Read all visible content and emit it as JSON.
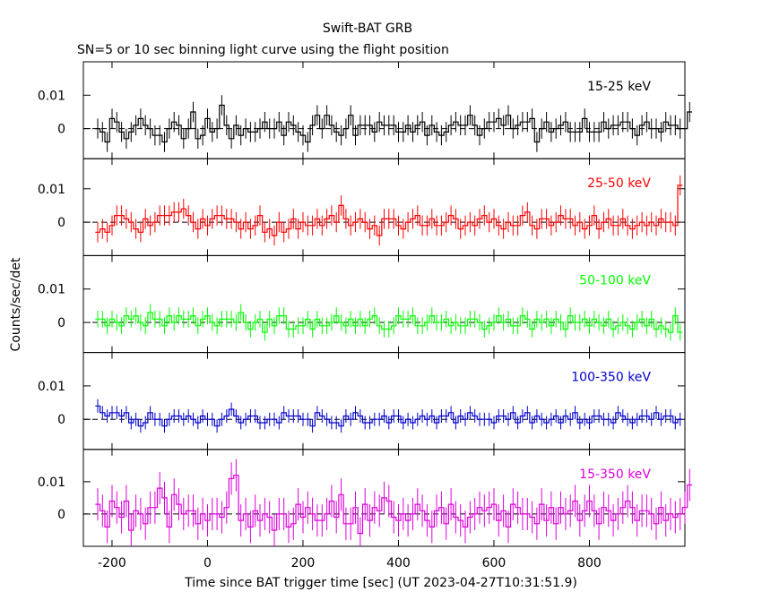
{
  "title": "Swift-BAT GRB",
  "subtitle": "SN=5 or 10 sec binning light curve using the flight position",
  "chart_data": {
    "type": "line",
    "style": "step histogram with vertical error bars, dashed zero reference line",
    "shared_x": true,
    "xlabel": "Time since BAT trigger time [sec] (UT 2023-04-27T10:31:51.9)",
    "ylabel": "Counts/sec/det",
    "xlim": [
      -260,
      1000
    ],
    "x_ticks": [
      -200,
      0,
      200,
      400,
      600,
      800
    ],
    "x_tick_labels": [
      "-200",
      "0",
      "200",
      "400",
      "600",
      "800"
    ],
    "bin_width_sec": 10,
    "x_start": -235,
    "y_ticks": [
      0,
      0.01
    ],
    "y_tick_labels": [
      "0",
      "0.01"
    ],
    "zero_line": "dashed",
    "panels": [
      {
        "name": "15-25 keV",
        "color": "#000000",
        "ylim": [
          -0.009,
          0.02
        ],
        "error": 0.003,
        "values": [
          0.0,
          -0.001,
          -0.004,
          0.003,
          0.002,
          -0.001,
          -0.003,
          -0.001,
          0.001,
          0.003,
          0.001,
          0.0,
          -0.002,
          -0.002,
          -0.004,
          0.0,
          0.002,
          0.001,
          -0.003,
          0.0,
          0.005,
          -0.003,
          -0.002,
          0.003,
          -0.001,
          0.0,
          0.007,
          0.001,
          -0.003,
          0.001,
          -0.002,
          0.0,
          -0.001,
          -0.001,
          0.0,
          0.002,
          0.0,
          0.0,
          0.002,
          -0.002,
          0.002,
          0.001,
          -0.001,
          -0.002,
          -0.004,
          0.001,
          0.004,
          0.0,
          0.004,
          0.001,
          -0.001,
          -0.002,
          0.0,
          0.004,
          -0.002,
          0.001,
          0.001,
          0.001,
          -0.001,
          0.002,
          0.001,
          0.001,
          0.001,
          -0.001,
          -0.001,
          0.001,
          -0.001,
          0.001,
          0.002,
          -0.002,
          0.001,
          -0.001,
          -0.002,
          -0.001,
          0.001,
          0.002,
          0.001,
          0.001,
          0.004,
          0.001,
          -0.002,
          0.0,
          0.002,
          0.002,
          0.003,
          0.001,
          0.004,
          0.0,
          0.001,
          0.002,
          0.002,
          0.003,
          -0.004,
          0.0,
          0.002,
          -0.001,
          0.0,
          0.001,
          0.002,
          -0.001,
          -0.001,
          -0.001,
          0.003,
          -0.001,
          -0.001,
          -0.001,
          0.002,
          0.0,
          0.001,
          0.001,
          0.002,
          0.002,
          0.0,
          -0.002,
          0.001,
          0.002,
          0.0,
          0.0,
          -0.001,
          0.002,
          0.001,
          0.001,
          0.0,
          0.0,
          0.005
        ]
      },
      {
        "name": "25-50 keV",
        "color": "#ff0000",
        "ylim": [
          -0.01,
          0.019
        ],
        "error": 0.003,
        "values": [
          -0.003,
          -0.002,
          -0.003,
          -0.001,
          0.002,
          0.002,
          0.001,
          0.0,
          -0.002,
          -0.003,
          0.001,
          -0.001,
          0.0,
          0.002,
          0.002,
          0.002,
          0.003,
          0.003,
          0.004,
          0.002,
          0.0,
          -0.002,
          0.001,
          -0.001,
          0.001,
          0.002,
          0.002,
          0.001,
          0.001,
          0.0,
          -0.002,
          0.0,
          -0.002,
          -0.001,
          0.002,
          -0.003,
          -0.002,
          -0.004,
          0.0,
          -0.003,
          -0.002,
          0.001,
          -0.002,
          0.0,
          -0.001,
          -0.001,
          0.001,
          -0.001,
          0.001,
          0.002,
          0.0,
          0.005,
          0.001,
          -0.001,
          0.0,
          0.001,
          0.0,
          -0.002,
          -0.001,
          -0.004,
          0.001,
          0.001,
          0.001,
          -0.001,
          -0.002,
          0.0,
          0.001,
          0.002,
          -0.001,
          -0.001,
          0.001,
          -0.001,
          -0.001,
          0.0,
          0.002,
          0.001,
          -0.002,
          -0.001,
          0.0,
          -0.001,
          0.001,
          0.002,
          0.0,
          0.001,
          -0.001,
          -0.002,
          0.0,
          -0.001,
          -0.001,
          0.002,
          0.003,
          -0.001,
          -0.002,
          0.001,
          0.001,
          -0.001,
          0.0,
          0.002,
          0.001,
          0.001,
          -0.001,
          0.0,
          -0.002,
          -0.001,
          0.002,
          -0.002,
          0.0,
          0.001,
          -0.001,
          -0.001,
          0.001,
          -0.001,
          -0.002,
          -0.001,
          0.0,
          -0.001,
          0.0,
          -0.001,
          0.001,
          0.0,
          0.0,
          -0.001,
          0.011
        ]
      },
      {
        "name": "50-100 keV",
        "color": "#00ff00",
        "ylim": [
          -0.009,
          0.02
        ],
        "error": 0.0025,
        "values": [
          0.001,
          0.001,
          -0.001,
          0.001,
          0.0,
          -0.001,
          0.002,
          0.001,
          0.002,
          0.0,
          -0.001,
          0.003,
          0.001,
          0.001,
          -0.001,
          0.002,
          0.0,
          0.002,
          0.001,
          0.001,
          0.002,
          -0.001,
          0.001,
          0.002,
          0.0,
          -0.001,
          0.001,
          0.001,
          0.001,
          0.0,
          0.003,
          0.0,
          -0.002,
          0.0,
          0.001,
          -0.003,
          0.001,
          -0.001,
          0.002,
          0.002,
          -0.002,
          -0.002,
          -0.001,
          -0.001,
          0.001,
          -0.002,
          0.001,
          -0.001,
          -0.001,
          0.0,
          0.002,
          0.0,
          -0.001,
          0.001,
          -0.001,
          0.001,
          -0.001,
          0.001,
          0.002,
          -0.001,
          -0.002,
          -0.002,
          -0.001,
          0.002,
          0.001,
          0.001,
          0.002,
          -0.001,
          -0.001,
          0.0,
          0.002,
          0.0,
          0.0,
          0.001,
          -0.001,
          0.0,
          -0.001,
          -0.001,
          0.001,
          0.001,
          0.0,
          -0.002,
          -0.001,
          0.0,
          0.002,
          0.0,
          0.001,
          -0.001,
          -0.001,
          0.002,
          0.001,
          -0.002,
          0.001,
          0.0,
          0.001,
          -0.001,
          0.001,
          0.0,
          -0.002,
          0.002,
          0.0,
          0.0,
          0.001,
          -0.001,
          0.001,
          0.0,
          -0.001,
          0.001,
          -0.002,
          -0.001,
          0.0,
          -0.001,
          -0.002,
          0.0,
          0.001,
          -0.001,
          0.001,
          -0.002,
          -0.001,
          -0.002,
          -0.003,
          0.002,
          -0.003
        ]
      },
      {
        "name": "100-350 keV",
        "color": "#0000cc",
        "ylim": [
          -0.009,
          0.02
        ],
        "error": 0.002,
        "values": [
          0.004,
          0.002,
          0.001,
          0.002,
          0.002,
          0.001,
          0.002,
          -0.001,
          0.0,
          -0.002,
          -0.001,
          0.002,
          0.0,
          0.0,
          -0.002,
          0.0,
          0.001,
          0.001,
          0.0,
          0.001,
          0.0,
          -0.001,
          0.001,
          0.0,
          0.0,
          -0.002,
          0.0,
          0.001,
          0.003,
          0.001,
          -0.001,
          0.0,
          0.001,
          0.001,
          -0.001,
          -0.001,
          0.0,
          0.0,
          -0.001,
          0.002,
          0.001,
          0.001,
          0.001,
          0.0,
          0.0,
          -0.002,
          0.002,
          0.001,
          0.0,
          -0.001,
          -0.001,
          -0.002,
          0.001,
          0.0,
          0.002,
          0.001,
          -0.001,
          -0.001,
          0.0,
          0.0,
          0.001,
          -0.001,
          0.001,
          0.001,
          -0.001,
          0.0,
          -0.001,
          0.0,
          0.001,
          0.0,
          0.001,
          -0.001,
          0.001,
          0.001,
          0.002,
          -0.001,
          0.001,
          0.0,
          0.002,
          0.001,
          0.0,
          0.0,
          0.0,
          -0.001,
          0.001,
          0.001,
          0.0,
          0.002,
          -0.001,
          0.001,
          0.002,
          -0.001,
          0.001,
          0.0,
          -0.001,
          0.0,
          0.001,
          -0.001,
          0.001,
          0.0,
          0.002,
          -0.001,
          0.0,
          -0.001,
          0.001,
          0.001,
          0.0,
          0.0,
          -0.001,
          0.002,
          0.001,
          0.0,
          -0.001,
          0.0,
          0.001,
          0.001,
          0.0,
          0.002,
          0.0,
          0.001,
          0.001,
          -0.001,
          0.0
        ]
      },
      {
        "name": "15-350 keV",
        "color": "#dd00dd",
        "ylim": [
          -0.01,
          0.02
        ],
        "error": 0.005,
        "values": [
          0.003,
          0.001,
          -0.004,
          0.004,
          0.002,
          -0.001,
          0.004,
          -0.005,
          0.001,
          0.0,
          -0.003,
          0.002,
          0.002,
          0.008,
          0.005,
          -0.004,
          0.006,
          0.003,
          0.0,
          0.001,
          0.001,
          -0.003,
          0.0,
          -0.002,
          0.0,
          0.0,
          -0.001,
          0.002,
          0.011,
          0.012,
          -0.002,
          0.0,
          -0.004,
          0.001,
          -0.002,
          0.0,
          -0.001,
          -0.005,
          0.0,
          0.0,
          -0.004,
          -0.003,
          0.003,
          -0.001,
          0.002,
          0.0,
          -0.002,
          -0.002,
          0.0,
          0.004,
          -0.001,
          0.006,
          -0.003,
          -0.003,
          0.002,
          -0.006,
          0.003,
          -0.002,
          0.002,
          0.001,
          0.005,
          0.004,
          -0.001,
          -0.002,
          0.0,
          -0.002,
          0.0,
          0.003,
          0.001,
          -0.002,
          -0.004,
          0.001,
          0.002,
          -0.003,
          0.003,
          -0.001,
          -0.002,
          -0.004,
          -0.001,
          0.0,
          0.002,
          0.001,
          0.002,
          0.003,
          -0.002,
          0.001,
          -0.004,
          0.003,
          0.002,
          0.0,
          0.0,
          -0.001,
          -0.003,
          0.003,
          -0.002,
          0.002,
          -0.003,
          0.002,
          0.0,
          0.001,
          0.004,
          -0.002,
          0.001,
          0.004,
          0.001,
          -0.003,
          0.002,
          0.001,
          -0.002,
          0.0,
          0.002,
          0.004,
          0.002,
          -0.002,
          0.001,
          0.001,
          0.0,
          -0.003,
          0.002,
          -0.002,
          0.0,
          -0.001,
          0.0,
          0.002,
          0.009
        ]
      }
    ]
  }
}
